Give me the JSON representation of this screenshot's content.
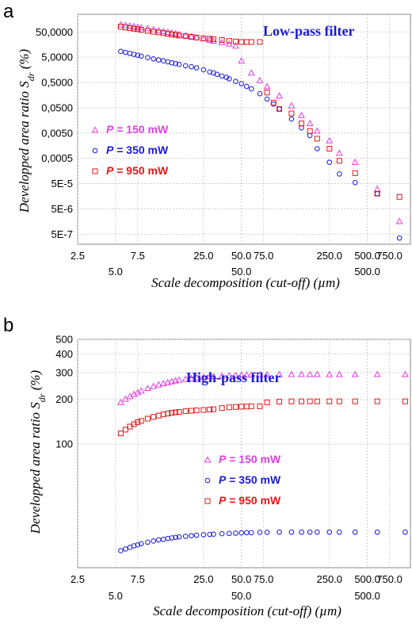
{
  "chart_data": [
    {
      "panel": "a",
      "type": "scatter",
      "title": "Low-pass filter",
      "xlabel": "Scale decomposition (cut-off) (µm)",
      "ylabel_main": "Developped area ratio S",
      "ylabel_sub": "dr",
      "ylabel_tail": " (%)",
      "x_scale": "log",
      "y_scale": "log",
      "xlim": [
        2.5,
        1100
      ],
      "ylim": [
        2e-07,
        250
      ],
      "x_ticks_upper": [
        "2.5",
        "7.5",
        "25.0",
        "50.0",
        "75.0",
        "250.0",
        "500.0",
        "750.0"
      ],
      "x_ticks_upper_vals": [
        2.5,
        7.5,
        25,
        50,
        75,
        250,
        500,
        750
      ],
      "x_ticks_lower": [
        "5.0",
        "50.0",
        "500.0"
      ],
      "x_ticks_lower_vals": [
        5,
        50,
        500
      ],
      "y_ticks": [
        "50,0000",
        "5,0000",
        "0,5000",
        "0,0500",
        "0,0050",
        "0,0005",
        "5E-5",
        "5E-6",
        "5E-7"
      ],
      "y_ticks_vals": [
        50,
        5,
        0.5,
        0.05,
        0.005,
        0.0005,
        5e-05,
        5e-06,
        5e-07
      ],
      "grid": true,
      "legend_position": "middle-left",
      "series": [
        {
          "name_prefix": "P",
          "name_rest": " = 150 mW",
          "marker": "triangle",
          "color": "#e040e0",
          "points": [
            [
              5.5,
              97
            ],
            [
              6,
              92
            ],
            [
              6.5,
              87
            ],
            [
              7,
              82
            ],
            [
              7.5,
              78
            ],
            [
              8,
              74
            ],
            [
              9,
              68
            ],
            [
              10,
              62
            ],
            [
              11,
              57
            ],
            [
              12,
              53
            ],
            [
              13,
              49
            ],
            [
              14,
              46
            ],
            [
              15,
              43
            ],
            [
              16,
              40
            ],
            [
              18,
              36
            ],
            [
              20,
              33
            ],
            [
              22,
              30
            ],
            [
              25,
              27
            ],
            [
              28,
              24
            ],
            [
              30,
              22
            ],
            [
              35,
              19
            ],
            [
              40,
              17
            ],
            [
              45,
              14
            ],
            [
              50,
              3.6
            ],
            [
              60,
              1.2
            ],
            [
              70,
              0.6
            ],
            [
              80,
              0.35
            ],
            [
              100,
              0.15
            ],
            [
              125,
              0.06
            ],
            [
              150,
              0.025
            ],
            [
              175,
              0.012
            ],
            [
              200,
              0.006
            ],
            [
              250,
              0.0025
            ],
            [
              300,
              0.0008
            ],
            [
              400,
              0.00035
            ],
            [
              600,
              3e-05
            ],
            [
              900,
              1.6e-06
            ]
          ]
        },
        {
          "name_prefix": "P",
          "name_rest": " = 350 mW",
          "marker": "circle",
          "color": "#1a1ad8",
          "points": [
            [
              5.5,
              8.5
            ],
            [
              6,
              7.8
            ],
            [
              6.5,
              7.1
            ],
            [
              7,
              6.5
            ],
            [
              7.5,
              6
            ],
            [
              8,
              5.5
            ],
            [
              9,
              4.8
            ],
            [
              10,
              4.3
            ],
            [
              11,
              3.9
            ],
            [
              12,
              3.6
            ],
            [
              13,
              3.3
            ],
            [
              14,
              3
            ],
            [
              15,
              2.8
            ],
            [
              16,
              2.6
            ],
            [
              18,
              2.3
            ],
            [
              20,
              2.1
            ],
            [
              22,
              1.9
            ],
            [
              25,
              1.6
            ],
            [
              28,
              1.3
            ],
            [
              30,
              1.2
            ],
            [
              32,
              1.05
            ],
            [
              35,
              0.9
            ],
            [
              38,
              0.8
            ],
            [
              40,
              0.7
            ],
            [
              45,
              0.55
            ],
            [
              50,
              0.45
            ],
            [
              55,
              0.35
            ],
            [
              60,
              0.28
            ],
            [
              70,
              0.18
            ],
            [
              80,
              0.11
            ],
            [
              90,
              0.07
            ],
            [
              100,
              0.045
            ],
            [
              125,
              0.018
            ],
            [
              150,
              0.008
            ],
            [
              175,
              0.004
            ],
            [
              200,
              0.0012
            ],
            [
              250,
              0.00035
            ],
            [
              300,
              0.00012
            ],
            [
              400,
              5.5e-05
            ],
            [
              600,
              2e-05
            ],
            [
              900,
              3.5e-07
            ]
          ]
        },
        {
          "name_prefix": "P",
          "name_rest": " = 950 mW",
          "marker": "square",
          "color": "#e01818",
          "points": [
            [
              5.5,
              80
            ],
            [
              6,
              75
            ],
            [
              6.5,
              71
            ],
            [
              7,
              67
            ],
            [
              7.5,
              64
            ],
            [
              8,
              60
            ],
            [
              9,
              55
            ],
            [
              10,
              51
            ],
            [
              11,
              48
            ],
            [
              12,
              45
            ],
            [
              13,
              42
            ],
            [
              14,
              40
            ],
            [
              15,
              38
            ],
            [
              16,
              36
            ],
            [
              18,
              34
            ],
            [
              20,
              32
            ],
            [
              22,
              30
            ],
            [
              25,
              28
            ],
            [
              28,
              27
            ],
            [
              30,
              26
            ],
            [
              35,
              24
            ],
            [
              40,
              22
            ],
            [
              45,
              21
            ],
            [
              50,
              20
            ],
            [
              55,
              20
            ],
            [
              60,
              20
            ],
            [
              70,
              20
            ],
            [
              80,
              0.2
            ],
            [
              90,
              0.08
            ],
            [
              100,
              0.045
            ],
            [
              125,
              0.03
            ],
            [
              150,
              0.012
            ],
            [
              175,
              0.006
            ],
            [
              200,
              0.003
            ],
            [
              250,
              0.0012
            ],
            [
              300,
              0.0004
            ],
            [
              400,
              0.00013
            ],
            [
              600,
              2e-05
            ],
            [
              900,
              1.5e-05
            ]
          ]
        }
      ]
    },
    {
      "panel": "b",
      "type": "scatter",
      "title": "High-pass filter",
      "xlabel": "Scale decomposition (cut-off) (µm)",
      "ylabel_main": "Developped area ratio S",
      "ylabel_sub": "dr",
      "ylabel_tail": " (%)",
      "x_scale": "log",
      "y_scale": "log",
      "xlim": [
        2.5,
        1100
      ],
      "ylim": [
        15,
        500
      ],
      "x_ticks_upper": [
        "2.5",
        "7.5",
        "25.0",
        "50.0",
        "75.0",
        "250.0",
        "500.0",
        "750.0"
      ],
      "x_ticks_upper_vals": [
        2.5,
        7.5,
        25,
        50,
        75,
        250,
        500,
        750
      ],
      "x_ticks_lower": [
        "5.0",
        "50.0",
        "500.0"
      ],
      "x_ticks_lower_vals": [
        5,
        50,
        500
      ],
      "y_ticks": [
        "500",
        "400",
        "300",
        "200",
        "100"
      ],
      "y_ticks_vals": [
        500,
        400,
        300,
        200,
        100
      ],
      "grid": true,
      "legend_position": "center-right",
      "series": [
        {
          "name_prefix": "P",
          "name_rest": " = 150 mW",
          "marker": "triangle",
          "color": "#e040e0",
          "points": [
            [
              5.5,
              190
            ],
            [
              6,
              200
            ],
            [
              6.5,
              208
            ],
            [
              7,
              215
            ],
            [
              7.5,
              221
            ],
            [
              8,
              227
            ],
            [
              9,
              236
            ],
            [
              10,
              243
            ],
            [
              11,
              249
            ],
            [
              12,
              254
            ],
            [
              13,
              258
            ],
            [
              14,
              262
            ],
            [
              15,
              265
            ],
            [
              16,
              268
            ],
            [
              18,
              272
            ],
            [
              20,
              275
            ],
            [
              22,
              277
            ],
            [
              25,
              280
            ],
            [
              28,
              282
            ],
            [
              30,
              283
            ],
            [
              35,
              285
            ],
            [
              40,
              287
            ],
            [
              45,
              288
            ],
            [
              50,
              289
            ],
            [
              55,
              290
            ],
            [
              60,
              290
            ],
            [
              70,
              291
            ],
            [
              80,
              291
            ],
            [
              100,
              292
            ],
            [
              125,
              292
            ],
            [
              150,
              292
            ],
            [
              175,
              292
            ],
            [
              200,
              292
            ],
            [
              250,
              292
            ],
            [
              300,
              292
            ],
            [
              400,
              292
            ],
            [
              600,
              292
            ],
            [
              1000,
              292
            ]
          ]
        },
        {
          "name_prefix": "P",
          "name_rest": " = 350 mW",
          "marker": "circle",
          "color": "#1a1ad8",
          "points": [
            [
              5.5,
              19.5
            ],
            [
              6,
              20
            ],
            [
              6.5,
              20.5
            ],
            [
              7,
              21
            ],
            [
              7.5,
              21.3
            ],
            [
              8,
              21.7
            ],
            [
              9,
              22.2
            ],
            [
              10,
              22.6
            ],
            [
              11,
              23
            ],
            [
              12,
              23.2
            ],
            [
              13,
              23.5
            ],
            [
              14,
              23.7
            ],
            [
              15,
              23.9
            ],
            [
              16,
              24.1
            ],
            [
              18,
              24.3
            ],
            [
              20,
              24.5
            ],
            [
              22,
              24.7
            ],
            [
              25,
              24.9
            ],
            [
              28,
              25
            ],
            [
              30,
              25.1
            ],
            [
              35,
              25.3
            ],
            [
              40,
              25.4
            ],
            [
              45,
              25.5
            ],
            [
              50,
              25.6
            ],
            [
              55,
              25.7
            ],
            [
              60,
              25.7
            ],
            [
              70,
              25.8
            ],
            [
              80,
              25.8
            ],
            [
              100,
              25.9
            ],
            [
              125,
              25.9
            ],
            [
              150,
              25.9
            ],
            [
              175,
              25.9
            ],
            [
              200,
              25.9
            ],
            [
              250,
              25.9
            ],
            [
              300,
              25.9
            ],
            [
              400,
              25.9
            ],
            [
              600,
              25.9
            ],
            [
              1000,
              25.9
            ]
          ]
        },
        {
          "name_prefix": "P",
          "name_rest": " = 950 mW",
          "marker": "square",
          "color": "#e01818",
          "points": [
            [
              5.5,
              118
            ],
            [
              6,
              125
            ],
            [
              6.5,
              131
            ],
            [
              7,
              136
            ],
            [
              7.5,
              140
            ],
            [
              8,
              143
            ],
            [
              9,
              148
            ],
            [
              10,
              152
            ],
            [
              11,
              155
            ],
            [
              12,
              158
            ],
            [
              13,
              160
            ],
            [
              14,
              162
            ],
            [
              15,
              163
            ],
            [
              16,
              164
            ],
            [
              18,
              166
            ],
            [
              20,
              167
            ],
            [
              22,
              168
            ],
            [
              25,
              169
            ],
            [
              28,
              170
            ],
            [
              30,
              171
            ],
            [
              35,
              174
            ],
            [
              40,
              176
            ],
            [
              45,
              177
            ],
            [
              50,
              178
            ],
            [
              55,
              178
            ],
            [
              60,
              179
            ],
            [
              70,
              179
            ],
            [
              80,
              190
            ],
            [
              100,
              192
            ],
            [
              125,
              193
            ],
            [
              150,
              193
            ],
            [
              175,
              193
            ],
            [
              200,
              193
            ],
            [
              250,
              193
            ],
            [
              300,
              193
            ],
            [
              400,
              193
            ],
            [
              600,
              193
            ],
            [
              1000,
              193
            ]
          ]
        }
      ]
    }
  ]
}
